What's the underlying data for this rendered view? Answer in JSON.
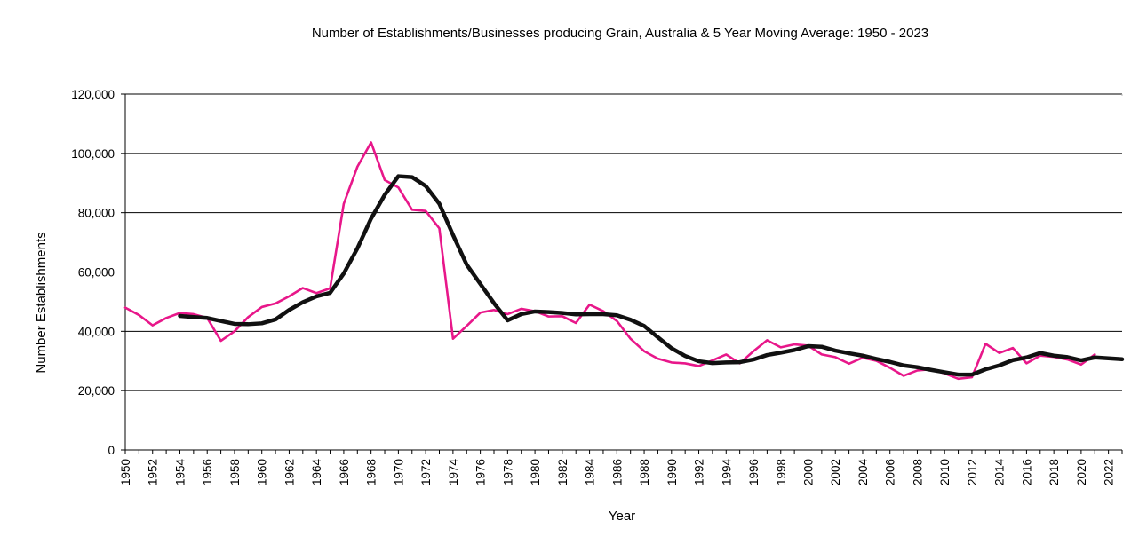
{
  "chart_data": {
    "type": "line",
    "title": "Number of Establishments/Businesses producing  Grain, Australia & 5 Year Moving Average: 1950 - 2023",
    "xlabel": "Year",
    "ylabel": "Number Establishments",
    "ylim": [
      0,
      120000
    ],
    "yticks": [
      0,
      20000,
      40000,
      60000,
      80000,
      100000,
      120000
    ],
    "ytick_labels": [
      "0",
      "20,000",
      "40,000",
      "60,000",
      "80,000",
      "100,000",
      "120,000"
    ],
    "xlim": [
      1950,
      2023
    ],
    "xtick_labels": [
      "1950",
      "1952",
      "1954",
      "1956",
      "1958",
      "1960",
      "1962",
      "1964",
      "1966",
      "1968",
      "1970",
      "1972",
      "1974",
      "1976",
      "1978",
      "1980",
      "1982",
      "1984",
      "1986",
      "1988",
      "1990",
      "1992",
      "1994",
      "1996",
      "1998",
      "2000",
      "2002",
      "2004",
      "2006",
      "2008",
      "2010",
      "2012",
      "2014",
      "2016",
      "2018",
      "2020",
      "2022"
    ],
    "grid": "horizontal",
    "colors": {
      "raw": "#e8178a",
      "moving_average": "#111111",
      "grid": "#000000",
      "axis": "#000000"
    },
    "series": [
      {
        "name": "Number of Establishments",
        "x": [
          1950,
          1951,
          1952,
          1953,
          1954,
          1955,
          1956,
          1957,
          1958,
          1959,
          1960,
          1961,
          1962,
          1963,
          1964,
          1965,
          1966,
          1967,
          1968,
          1969,
          1970,
          1971,
          1972,
          1973,
          1974,
          1975,
          1976,
          1977,
          1978,
          1979,
          1980,
          1981,
          1982,
          1983,
          1984,
          1985,
          1986,
          1987,
          1988,
          1989,
          1990,
          1991,
          1992,
          1993,
          1994,
          1995,
          1996,
          1997,
          1998,
          1999,
          2000,
          2001,
          2002,
          2003,
          2004,
          2005,
          2006,
          2007,
          2008,
          2009,
          2010,
          2011,
          2012,
          2013,
          2014,
          2015,
          2016,
          2017,
          2018,
          2019,
          2020,
          2021
        ],
        "values": [
          48000,
          45500,
          42000,
          44500,
          46200,
          45800,
          44500,
          36800,
          40000,
          44800,
          48200,
          49400,
          51800,
          54600,
          52900,
          54500,
          83000,
          95500,
          103700,
          91000,
          88500,
          81000,
          80600,
          74700,
          37500,
          41800,
          46300,
          47200,
          45800,
          47600,
          46800,
          45000,
          45100,
          42800,
          49000,
          46800,
          43500,
          37500,
          33300,
          30800,
          29500,
          29200,
          28300,
          30200,
          32200,
          29200,
          33300,
          37000,
          34600,
          35600,
          35200,
          32200,
          31300,
          29100,
          31100,
          30100,
          27700,
          25000,
          26800,
          27200,
          25800,
          24000,
          24500,
          35800,
          32700,
          34400,
          29200,
          31800,
          31400,
          30500,
          28800,
          32200
        ]
      },
      {
        "name": "5 Year Moving Average",
        "x": [
          1954,
          1955,
          1956,
          1957,
          1958,
          1959,
          1960,
          1961,
          1962,
          1963,
          1964,
          1965,
          1966,
          1967,
          1968,
          1969,
          1970,
          1971,
          1972,
          1973,
          1974,
          1975,
          1976,
          1977,
          1978,
          1979,
          1980,
          1981,
          1982,
          1983,
          1984,
          1985,
          1986,
          1987,
          1988,
          1989,
          1990,
          1991,
          1992,
          1993,
          1994,
          1995,
          1996,
          1997,
          1998,
          1999,
          2000,
          2001,
          2002,
          2003,
          2004,
          2005,
          2006,
          2007,
          2008,
          2009,
          2010,
          2011,
          2012,
          2013,
          2014,
          2015,
          2016,
          2017,
          2018,
          2019,
          2020,
          2021,
          2022,
          2023
        ],
        "values": [
          45200,
          44800,
          44500,
          43500,
          42500,
          42400,
          42700,
          44000,
          47200,
          49800,
          51800,
          53000,
          59500,
          68000,
          78000,
          86000,
          92300,
          92000,
          89000,
          83000,
          72500,
          62500,
          56000,
          49500,
          43700,
          45800,
          46700,
          46500,
          46200,
          45700,
          45800,
          45800,
          45400,
          43900,
          41800,
          38000,
          34300,
          31700,
          29900,
          29300,
          29500,
          29600,
          30500,
          32000,
          32800,
          33700,
          35000,
          34800,
          33500,
          32600,
          31800,
          30700,
          29700,
          28500,
          27900,
          27000,
          26200,
          25400,
          25400,
          27200,
          28500,
          30300,
          31200,
          32700,
          31800,
          31300,
          30200,
          31200,
          30900,
          30600
        ]
      }
    ]
  }
}
